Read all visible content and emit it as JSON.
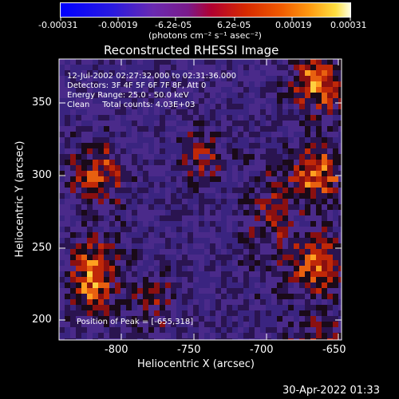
{
  "colorbar": {
    "ticks": [
      "-0.00031",
      "-0.00019",
      "-6.2e-05",
      "6.2e-05",
      "0.00019",
      "0.00031"
    ],
    "units_text": "(photons cm⁻² s⁻¹ asec⁻²)"
  },
  "title": "Reconstructed RHESSI Image",
  "info": {
    "line1": "12-Jul-2002 02:27:32.000 to 02:31:36.000",
    "line2": "Detectors: 3F 4F 5F 6F 7F 8F, Att 0",
    "line3": "Energy Range: 25.0 - 50.0 keV",
    "line4": "Clean     Total counts: 4.03E+03"
  },
  "peak": "Position of Peak = [-655,318]",
  "x_axis": {
    "label": "Heliocentric X (arcsec)",
    "ticks": [
      "-800",
      "-750",
      "-700",
      "-650"
    ]
  },
  "y_axis": {
    "label": "Heliocentric Y (arcsec)",
    "ticks": [
      "200",
      "250",
      "300",
      "350"
    ]
  },
  "timestamp": "30-Apr-2022 01:33",
  "colors": {
    "background": "#000000",
    "cool": "#4a2a8a",
    "hot": "#ffcc33"
  }
}
